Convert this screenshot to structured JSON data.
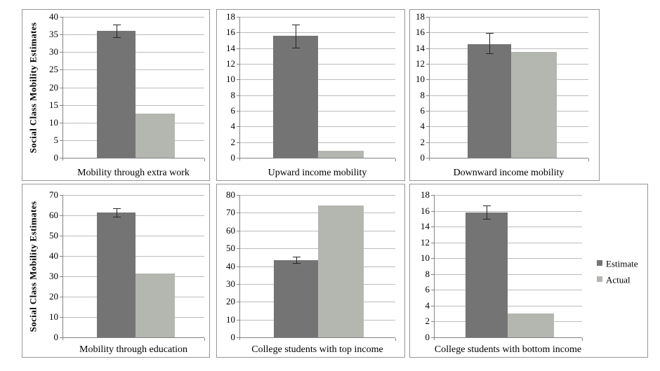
{
  "figure": {
    "y_axis_label": "Social Class Mobility Estimates",
    "legend": {
      "position": "right",
      "items": [
        {
          "label": "Estimate",
          "color": "#747474"
        },
        {
          "label": "Actual",
          "color": "#b4b6b0"
        }
      ]
    },
    "colors": {
      "estimate_bar": "#747474",
      "actual_bar": "#b4b6b0",
      "gridline": "#bcbcbc",
      "axis": "#848484",
      "panel_border": "#969696",
      "error_bar": "#262626",
      "text": "#000000",
      "background": "#ffffff"
    }
  },
  "chart_data": [
    {
      "type": "bar",
      "title": "Mobility through extra work",
      "categories": [
        "Estimate",
        "Actual"
      ],
      "values": [
        36.1,
        12.5
      ],
      "error_bars": [
        {
          "low": 34.3,
          "high": 37.9
        },
        null
      ],
      "ylabel": "Social Class Mobility Estimates",
      "ylim": [
        0,
        40
      ],
      "yticks": [
        0,
        5,
        10,
        15,
        20,
        25,
        30,
        35,
        40
      ],
      "grid": true
    },
    {
      "type": "bar",
      "title": "Upward income mobility",
      "categories": [
        "Estimate",
        "Actual"
      ],
      "values": [
        15.6,
        0.9
      ],
      "error_bars": [
        {
          "low": 14.1,
          "high": 17.0
        },
        null
      ],
      "ylabel": "",
      "ylim": [
        0,
        18
      ],
      "yticks": [
        0,
        2,
        4,
        6,
        8,
        10,
        12,
        14,
        16,
        18
      ],
      "grid": true
    },
    {
      "type": "bar",
      "title": "Downward income mobility",
      "categories": [
        "Estimate",
        "Actual"
      ],
      "values": [
        14.5,
        13.5
      ],
      "error_bars": [
        {
          "low": 13.3,
          "high": 15.9
        },
        null
      ],
      "ylabel": "",
      "ylim": [
        0,
        18
      ],
      "yticks": [
        0,
        2,
        4,
        6,
        8,
        10,
        12,
        14,
        16,
        18
      ],
      "grid": true
    },
    {
      "type": "bar",
      "title": "Mobility through education",
      "categories": [
        "Estimate",
        "Actual"
      ],
      "values": [
        61.3,
        31.3
      ],
      "error_bars": [
        {
          "low": 59.4,
          "high": 63.3
        },
        null
      ],
      "ylabel": "Social Class Mobility Estimates",
      "ylim": [
        0,
        70
      ],
      "yticks": [
        0,
        10,
        20,
        30,
        40,
        50,
        60,
        70
      ],
      "grid": true
    },
    {
      "type": "bar",
      "title": "College students with top income",
      "categories": [
        "Estimate",
        "Actual"
      ],
      "values": [
        43.5,
        74
      ],
      "error_bars": [
        {
          "low": 41.8,
          "high": 45.5
        },
        null
      ],
      "ylabel": "",
      "ylim": [
        0,
        80
      ],
      "yticks": [
        0,
        10,
        20,
        30,
        40,
        50,
        60,
        70,
        80
      ],
      "grid": true
    },
    {
      "type": "bar",
      "title": "College students with bottom income",
      "categories": [
        "Estimate",
        "Actual"
      ],
      "values": [
        15.8,
        3
      ],
      "error_bars": [
        {
          "low": 15.0,
          "high": 16.7
        },
        null
      ],
      "ylabel": "",
      "ylim": [
        0,
        18
      ],
      "yticks": [
        0,
        2,
        4,
        6,
        8,
        10,
        12,
        14,
        16,
        18
      ],
      "grid": true
    }
  ]
}
